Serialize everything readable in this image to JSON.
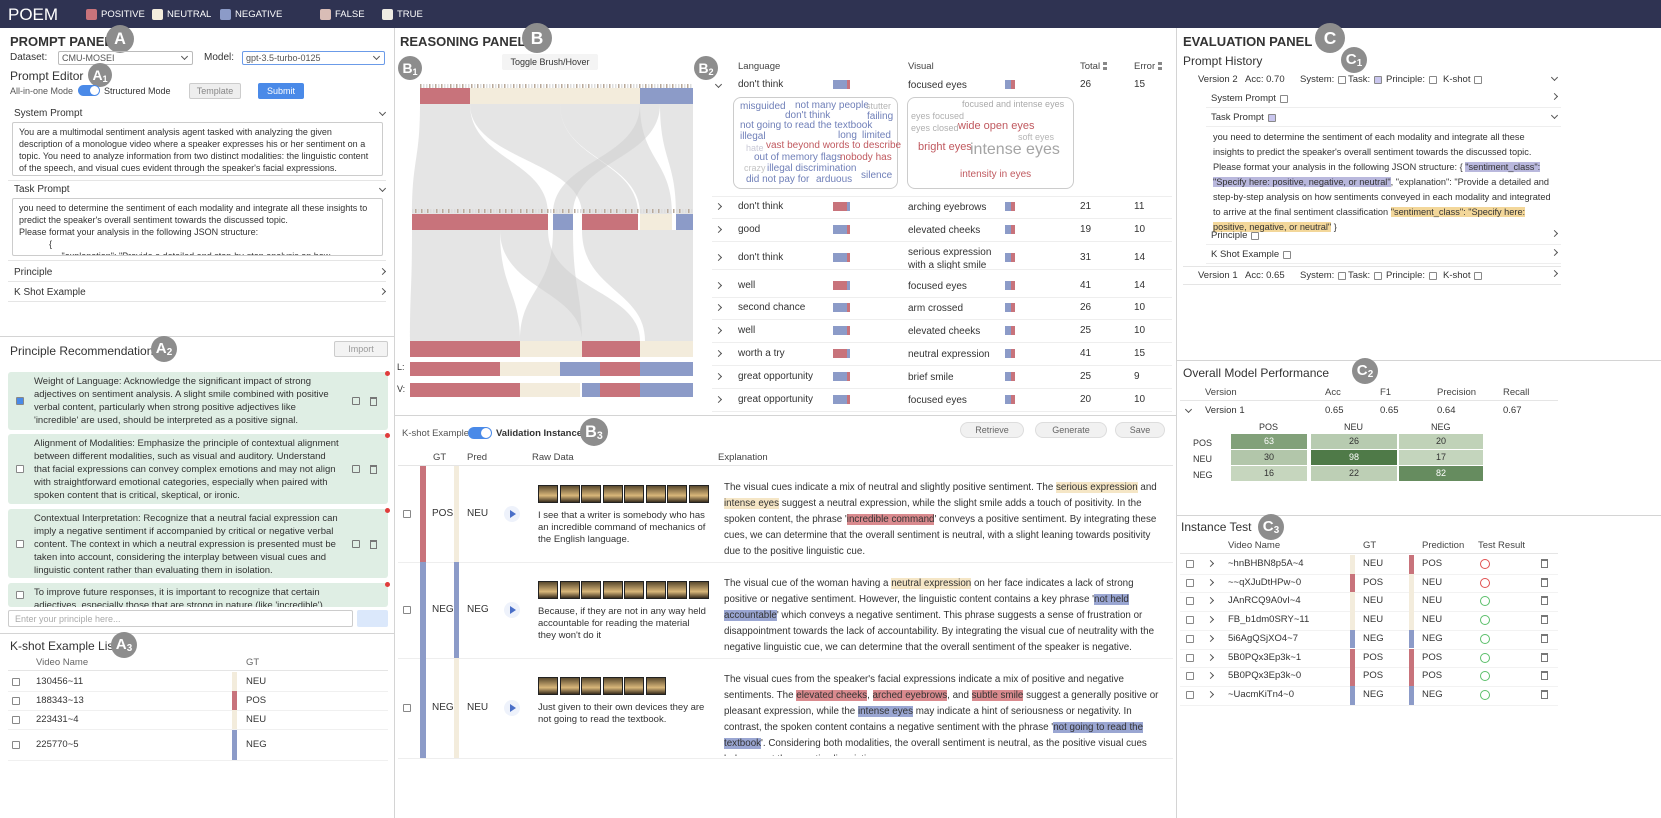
{
  "header": {
    "title": "POEM",
    "legend": [
      {
        "label": "POSITIVE",
        "color": "#c8737b"
      },
      {
        "label": "NEUTRAL",
        "color": "#f3ecdc"
      },
      {
        "label": "NEGATIVE",
        "color": "#8c9bc8"
      },
      {
        "label": "FALSE",
        "color": "#d9bdb6"
      },
      {
        "label": "TRUE",
        "color": "#eeebe3"
      }
    ]
  },
  "prompt_panel": {
    "title": "PROMPT PANEL",
    "badge": {
      "letter": "A"
    },
    "dataset_label": "Dataset:",
    "dataset": "CMU-MOSEI",
    "model_label": "Model:",
    "model": "gpt-3.5-turbo-0125",
    "editor": {
      "title": "Prompt Editor",
      "badge": {
        "letter": "A",
        "sub": "1"
      },
      "mode_left": "All-in-one Mode",
      "mode_right": "Structured Mode",
      "template": "Template",
      "submit": "Submit",
      "sections": [
        {
          "title": "System Prompt",
          "text": "You are a multimodal sentiment analysis agent tasked with analyzing the given description of a monologue video where a speaker expresses his or her sentiment on a topic. You need to analyze information from two distinct modalities: the linguistic content of the speech, and visual cues evident through the speaker's facial expressions."
        },
        {
          "title": "Task Prompt",
          "text": "you need to determine the sentiment of each modality and integrate all these insights to predict the speaker's overall sentiment towards the discussed topic.\nPlease format your analysis in the following JSON structure:\n            {\n                 \"explanation\": \"Provide a detailed and step-by-step analysis on how sentiments..."
        },
        {
          "title": "Principle"
        },
        {
          "title": "K Shot Example"
        }
      ]
    }
  },
  "principle_panel": {
    "title": "Principle Recommendation",
    "badge": {
      "letter": "A",
      "sub": "2"
    },
    "import": "Import",
    "principles": [
      "Weight of Language: Acknowledge the significant impact of strong adjectives on sentiment analysis. A slight smile combined with positive verbal content, particularly when strong positive adjectives like 'incredible' are used, should be interpreted as a positive signal.",
      "Alignment of Modalities: Emphasize the principle of contextual alignment between different modalities, such as visual and auditory. Understand that facial expressions can convey complex emotions and may not align with straightforward emotional categories, especially when paired with spoken content that is critical, skeptical, or ironic.",
      "Contextual Interpretation: Recognize that a neutral facial expression can imply a negative sentiment if accompanied by critical or negative verbal content. The context in which a neutral expression is presented must be taken into account, considering the interplay between visual cues and linguistic content rather than evaluating them in isolation.",
      "To improve future responses, it is important to recognize that certain adjectives, especially those that are strong in nature (like 'incredible')"
    ],
    "placeholder": "Enter your principle here..."
  },
  "kshot_list": {
    "title": "K-shot Example List",
    "badge": {
      "letter": "A",
      "sub": "3"
    },
    "columns": [
      "Video Name",
      "GT"
    ],
    "rows": [
      [
        "130456~11",
        "NEU"
      ],
      [
        "188343~13",
        "POS"
      ],
      [
        "223431~4",
        "NEU"
      ],
      [
        "225770~5",
        "NEG"
      ]
    ]
  },
  "reasoning_panel": {
    "title": "REASONING PANEL",
    "badge": {
      "letter": "B"
    },
    "sankey_badge": {
      "letter": "B",
      "sub": "1"
    },
    "toggle": "Toggle Brush/Hover",
    "row_labels": [
      "L:",
      "V:"
    ],
    "table_badge": {
      "letter": "B",
      "sub": "2"
    },
    "columns": [
      "Language",
      "Visual",
      "Total",
      "Error"
    ],
    "rows": [
      {
        "language": "don't think",
        "visual": "focused eyes",
        "total": 26,
        "error": 15
      },
      {
        "language": "don't think",
        "visual": "arching eyebrows",
        "total": 21,
        "error": 11
      },
      {
        "language": "good",
        "visual": "elevated cheeks",
        "total": 19,
        "error": 10
      },
      {
        "language": "don't think",
        "visual": "serious expression with a slight smile",
        "total": 31,
        "error": 14
      },
      {
        "language": "well",
        "visual": "focused eyes",
        "total": 41,
        "error": 14
      },
      {
        "language": "second chance",
        "visual": "arm crossed",
        "total": 26,
        "error": 10
      },
      {
        "language": "well",
        "visual": "elevated cheeks",
        "total": 25,
        "error": 10
      },
      {
        "language": "worth a try",
        "visual": "neutral expression",
        "total": 41,
        "error": 15
      },
      {
        "language": "great opportunity",
        "visual": "brief smile",
        "total": 25,
        "error": 9
      },
      {
        "language": "great opportunity",
        "visual": "focused eyes",
        "total": 20,
        "error": 10
      }
    ],
    "language_cloud": [
      {
        "text": "misguided",
        "color": "#6f7fb8"
      },
      {
        "text": "not many people",
        "color": "#6f7fb8"
      },
      {
        "text": "stutter",
        "color": "#b5b5b5"
      },
      {
        "text": "don't think",
        "color": "#6f7fb8"
      },
      {
        "text": "failing",
        "color": "#6f7fb8"
      },
      {
        "text": "not going to read the textbook",
        "color": "#6f7fb8"
      },
      {
        "text": "illegal",
        "color": "#6f7fb8"
      },
      {
        "text": "long",
        "color": "#6f7fb8"
      },
      {
        "text": "limited",
        "color": "#6f7fb8"
      },
      {
        "text": "hate",
        "color": "#c9c9d6"
      },
      {
        "text": "vast beyond words to describe",
        "color": "#c0595f"
      },
      {
        "text": "out of memory flags",
        "color": "#6f7fb8"
      },
      {
        "text": "nobody has",
        "color": "#c0595f"
      },
      {
        "text": "crazy",
        "color": "#c4c4c4"
      },
      {
        "text": "illegal discrimination",
        "color": "#6f7fb8"
      },
      {
        "text": "did not pay for",
        "color": "#6f7fb8"
      },
      {
        "text": "arduous",
        "color": "#6f7fb8"
      },
      {
        "text": "silence",
        "color": "#6f7fb8"
      }
    ],
    "visual_cloud": [
      {
        "text": "focused and intense eyes",
        "color": "#aaaaaa"
      },
      {
        "text": "eyes focused",
        "color": "#b0b0b0"
      },
      {
        "text": "eyes closed",
        "color": "#b0b0b0"
      },
      {
        "text": "wide open eyes",
        "color": "#c0595f"
      },
      {
        "text": "soft eyes",
        "color": "#b5b5b5"
      },
      {
        "text": "bright eyes",
        "color": "#c0595f"
      },
      {
        "text": "intense eyes",
        "color": "#a5a5a5"
      },
      {
        "text": "intensity in eyes",
        "color": "#c0595f"
      }
    ]
  },
  "kshot_panel": {
    "badge": {
      "letter": "B",
      "sub": "3"
    },
    "mode_left": "K-shot Example",
    "mode_right": "Validation Instance",
    "buttons": [
      "Retrieve",
      "Generate",
      "Save"
    ],
    "columns": [
      "GT",
      "Pred",
      "Raw Data",
      "Explanation"
    ],
    "rows": [
      {
        "gt": "POS",
        "pred": "NEU",
        "raw": "I see that a writer is somebody who has an incredible command of mechanics of the English language.",
        "explanation": [
          "The visual cues indicate a mix of neutral and slightly positive sentiment. The ",
          {
            "text": "serious expression",
            "color": "#f5e6c6"
          },
          " and ",
          {
            "text": "intense eyes",
            "color": "#f5e6c6"
          },
          " suggest a neutral expression, while the slight smile adds a touch of positivity. In the spoken content, the phrase '",
          {
            "text": "incredible command",
            "color": "#d98a8e"
          },
          "' conveys a positive sentiment. By integrating these cues, we can determine that the overall sentiment is neutral, with a slight leaning towards positivity due to the positive linguistic cue."
        ]
      },
      {
        "gt": "NEG",
        "pred": "NEG",
        "raw": "Because, if they are not in any way held accountable for reading the material they won't do it",
        "explanation": [
          "The visual cue of the woman having a ",
          {
            "text": "neutral expression",
            "color": "#f5e6c6"
          },
          " on her face indicates a lack of strong positive or negative sentiment. However, the linguistic content contains a key phrase '",
          {
            "text": "not held accountable",
            "color": "#9aa6d2"
          },
          "' which conveys a negative sentiment. This phrase suggests a sense of frustration or disappointment towards the lack of accountability. By integrating the visual cue of neutrality with the negative linguistic cue, we can determine that the overall sentiment of the speaker is negative."
        ]
      },
      {
        "gt": "NEG",
        "pred": "NEU",
        "raw": "Just given to their own devices they are not going to read the textbook.",
        "explanation": [
          "The visual cues from the speaker's facial expressions indicate a mix of positive and negative sentiments. The ",
          {
            "text": "elevated cheeks",
            "color": "#d98a8e"
          },
          ", ",
          {
            "text": "arched eyebrows",
            "color": "#d98a8e"
          },
          ", and ",
          {
            "text": "subtle smile",
            "color": "#d98a8e"
          },
          " suggest a generally positive or pleasant expression, while the ",
          {
            "text": "intense eyes",
            "color": "#9aa6d2"
          },
          " may indicate a hint of seriousness or negativity. In contrast, the spoken content contains a negative sentiment with the phrase '",
          {
            "text": "not going to read the textbook",
            "color": "#9aa6d2"
          },
          "'. Considering both modalities, the overall sentiment is neutral, as the positive visual cues balance out the negative linguistic cue."
        ]
      }
    ]
  },
  "evaluation_panel": {
    "title": "EVALUATION PANEL",
    "badge": {
      "letter": "C"
    },
    "history": {
      "title": "Prompt History",
      "badge": {
        "letter": "C",
        "sub": "1"
      },
      "versions": [
        {
          "name": "Version 2",
          "acc": "Acc: 0.70",
          "flags": [
            "System:",
            "Task:",
            "Principle:",
            "K-shot"
          ],
          "sections": [
            {
              "title": "System Prompt"
            },
            {
              "title": "Task Prompt",
              "text": [
                "you need to determine the sentiment of each modality and integrate all these insights to predict the speaker's overall sentiment towards the discussed topic. Please format your analysis in the following JSON structure: { ",
                {
                  "text": "\"sentiment_class\": \"Specify here: positive, negative, or neutral\"",
                  "color": "#b9b8dd"
                },
                ", \"explanation\": \"Provide a detailed and step-by-step analysis on how sentiments conveyed in each modality and integrated to arrive at the final sentiment classification ",
                {
                  "text": "\"sentiment_class\": \"Specify here: positive, negative, or neutral\"",
                  "color": "#f3d79a"
                },
                " }"
              ]
            },
            {
              "title": "Principle"
            },
            {
              "title": "K Shot Example"
            }
          ]
        },
        {
          "name": "Version 1",
          "acc": "Acc: 0.65",
          "flags": [
            "System:",
            "Task:",
            "Principle:",
            "K-shot"
          ]
        }
      ]
    },
    "performance": {
      "title": "Overall Model Performance",
      "badge": {
        "letter": "C",
        "sub": "2"
      },
      "columns": [
        "Version",
        "Acc",
        "F1",
        "Precision",
        "Recall"
      ],
      "rows": [
        [
          "Version 1",
          0.65,
          0.65,
          0.64,
          0.67
        ]
      ],
      "matrix": {
        "labels": [
          "POS",
          "NEU",
          "NEG"
        ],
        "values": [
          [
            63,
            26,
            20
          ],
          [
            30,
            98,
            17
          ],
          [
            16,
            22,
            82
          ]
        ]
      }
    },
    "instance_test": {
      "title": "Instance Test",
      "badge": {
        "letter": "C",
        "sub": "3"
      },
      "columns": [
        "Video Name",
        "GT",
        "Prediction",
        "Test Result"
      ],
      "rows": [
        [
          "~hnBHBN8p5A~4",
          "NEU",
          "POS"
        ],
        [
          "~~qXJuDtHPw~0",
          "POS",
          "NEU"
        ],
        [
          "JAnRCQ9A0vI~4",
          "NEU",
          "NEU"
        ],
        [
          "FB_b1dm0SRY~11",
          "NEU",
          "NEU"
        ],
        [
          "5i6AgQSjXO4~7",
          "NEG",
          "NEG"
        ],
        [
          "5B0PQx3Ep3k~1",
          "POS",
          "POS"
        ],
        [
          "5B0PQx3Ep3k~0",
          "POS",
          "POS"
        ],
        [
          "~UacmKiTn4~0",
          "NEG",
          "NEG"
        ]
      ]
    }
  }
}
